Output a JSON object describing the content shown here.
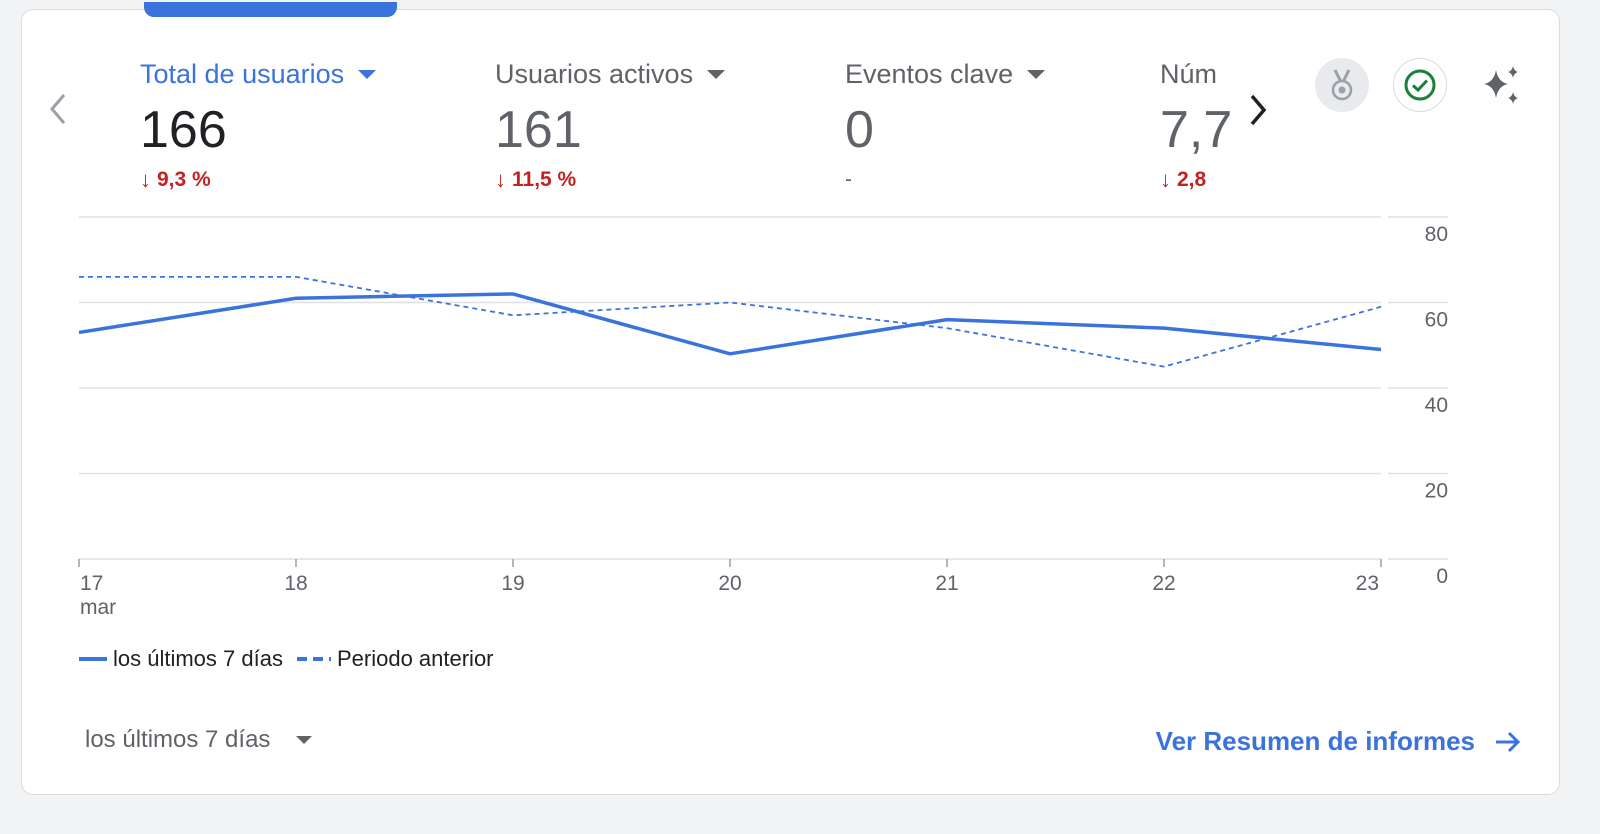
{
  "metrics": [
    {
      "label": "Total de usuarios",
      "value": "166",
      "delta_arrow": "↓",
      "delta": "9,3 %",
      "active": true
    },
    {
      "label": "Usuarios activos",
      "value": "161",
      "delta_arrow": "↓",
      "delta": "11,5 %"
    },
    {
      "label": "Eventos clave",
      "value": "0",
      "delta_arrow": "",
      "delta": "-"
    },
    {
      "label": "Núm",
      "value": "7,7",
      "delta_arrow": "↓",
      "delta": "2,8"
    }
  ],
  "colors": {
    "accent": "#3b73dc",
    "negative": "#c5221f",
    "positive": "#188038",
    "muted": "#5f6368"
  },
  "icons": {
    "prev": "chevron-left-icon",
    "next": "chevron-right-icon",
    "badge": "medal-icon",
    "check": "check-circle-icon",
    "insights": "sparkle-icon",
    "arrow": "arrow-right-icon"
  },
  "chart_data": {
    "type": "line",
    "x": [
      "17",
      "18",
      "19",
      "20",
      "21",
      "22",
      "23"
    ],
    "x_sublabel_first": "mar",
    "series": [
      {
        "name": "los últimos 7 días",
        "values": [
          53,
          61,
          62,
          48,
          56,
          54,
          49
        ]
      },
      {
        "name": "Periodo anterior",
        "values": [
          66,
          66,
          57,
          60,
          54,
          45,
          59
        ]
      }
    ],
    "ylim": [
      0,
      80
    ],
    "yticks": [
      "80",
      "60",
      "40",
      "20",
      "0"
    ],
    "grid": true,
    "legend": "bottom-left"
  },
  "footer": {
    "range_label": "los últimos 7 días",
    "link_label": "Ver Resumen de informes"
  }
}
